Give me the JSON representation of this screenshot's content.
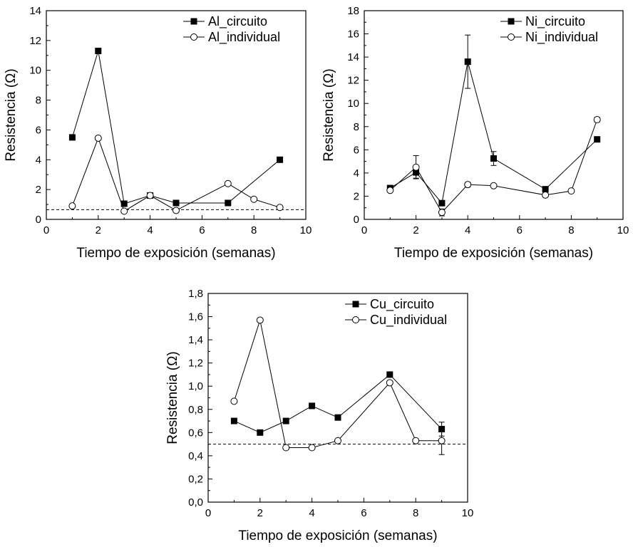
{
  "chart_data": [
    {
      "type": "line",
      "xlabel": "Tiempo de exposición (semanas)",
      "ylabel": "Resistencia (Ω)",
      "xlim": [
        0,
        10
      ],
      "ylim": [
        0,
        14
      ],
      "xticks": [
        0,
        2,
        4,
        6,
        8,
        10
      ],
      "yticks": [
        0,
        2,
        4,
        6,
        8,
        10,
        12,
        14
      ],
      "xtick_labels": [
        "0",
        "2",
        "4",
        "6",
        "8",
        "10"
      ],
      "ytick_labels": [
        "0",
        "2",
        "4",
        "6",
        "8",
        "10",
        "12",
        "14"
      ],
      "legend_position": "top-right",
      "reference_line": 0.65,
      "series": [
        {
          "name": "Al_circuito",
          "marker": "filled-square",
          "x": [
            1,
            2,
            3,
            4,
            5,
            7,
            9
          ],
          "y": [
            5.5,
            11.3,
            1.05,
            1.6,
            1.1,
            1.1,
            4.0
          ]
        },
        {
          "name": "Al_individual",
          "marker": "open-circle",
          "x": [
            1,
            2,
            3,
            4,
            5,
            7,
            8,
            9
          ],
          "y": [
            0.9,
            5.45,
            0.55,
            1.6,
            0.6,
            2.4,
            1.35,
            0.8
          ]
        }
      ]
    },
    {
      "type": "line",
      "xlabel": "Tiempo de exposición (semanas)",
      "ylabel": "Resistencia (Ω)",
      "xlim": [
        0,
        10
      ],
      "ylim": [
        0,
        18
      ],
      "xticks": [
        0,
        2,
        4,
        6,
        8,
        10
      ],
      "yticks": [
        0,
        2,
        4,
        6,
        8,
        10,
        12,
        14,
        16,
        18
      ],
      "xtick_labels": [
        "0",
        "2",
        "4",
        "6",
        "8",
        "10"
      ],
      "ytick_labels": [
        "0",
        "2",
        "4",
        "6",
        "8",
        "10",
        "12",
        "14",
        "16",
        "18"
      ],
      "legend_position": "top-right",
      "series": [
        {
          "name": "Ni_circuito",
          "marker": "filled-square",
          "x": [
            1,
            2,
            3,
            4,
            5,
            7,
            9
          ],
          "y": [
            2.7,
            4.05,
            1.4,
            13.6,
            5.25,
            2.6,
            6.9
          ],
          "error": [
            0,
            0.5,
            0,
            2.3,
            0.6,
            0,
            0
          ]
        },
        {
          "name": "Ni_individual",
          "marker": "open-circle",
          "x": [
            1,
            2,
            3,
            4,
            5,
            7,
            8,
            9
          ],
          "y": [
            2.5,
            4.5,
            0.6,
            3.0,
            2.9,
            2.1,
            2.45,
            8.6
          ],
          "error": [
            0,
            1.0,
            0.3,
            0.2,
            0.1,
            0,
            0,
            0.2
          ]
        }
      ]
    },
    {
      "type": "line",
      "xlabel": "Tiempo de exposición (semanas)",
      "ylabel": "Resistencia (Ω)",
      "xlim": [
        0,
        10
      ],
      "ylim": [
        0,
        1.8
      ],
      "xticks": [
        0,
        2,
        4,
        6,
        8,
        10
      ],
      "yticks": [
        0,
        0.2,
        0.4,
        0.6,
        0.8,
        1.0,
        1.2,
        1.4,
        1.6,
        1.8
      ],
      "xtick_labels": [
        "0",
        "2",
        "4",
        "6",
        "8",
        "10"
      ],
      "ytick_labels": [
        "0,0",
        "0,2",
        "0,4",
        "0,6",
        "0,8",
        "1,0",
        "1,2",
        "1,4",
        "1,6",
        "1,8"
      ],
      "legend_position": "top-right",
      "reference_line": 0.5,
      "series": [
        {
          "name": "Cu_circuito",
          "marker": "filled-square",
          "x": [
            1,
            2,
            3,
            4,
            5,
            7,
            9
          ],
          "y": [
            0.7,
            0.6,
            0.7,
            0.83,
            0.73,
            1.1,
            0.63
          ],
          "error": [
            0,
            0,
            0,
            0,
            0,
            0,
            0.06
          ]
        },
        {
          "name": "Cu_individual",
          "marker": "open-circle",
          "x": [
            1,
            2,
            3,
            4,
            5,
            7,
            8,
            9
          ],
          "y": [
            0.87,
            1.57,
            0.47,
            0.47,
            0.53,
            1.03,
            0.53,
            0.53
          ],
          "error": [
            0,
            0,
            0,
            0,
            0,
            0,
            0,
            0.12
          ]
        }
      ]
    }
  ]
}
